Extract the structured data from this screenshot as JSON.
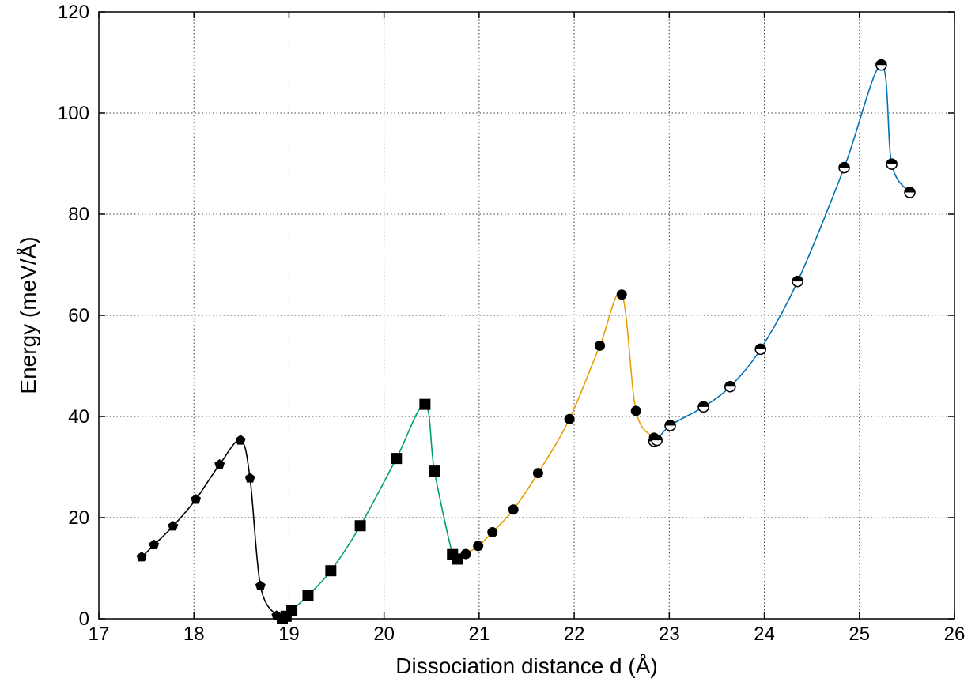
{
  "chart_data": {
    "type": "scatter",
    "title": "",
    "xlabel": "Dissociation distance d (Å)",
    "ylabel": "Energy (meV/Å)",
    "xlim": [
      17,
      26
    ],
    "ylim": [
      0,
      120
    ],
    "xticks": [
      17,
      18,
      19,
      20,
      21,
      22,
      23,
      24,
      25,
      26
    ],
    "yticks": [
      0,
      20,
      40,
      60,
      80,
      100,
      120
    ],
    "grid": true,
    "legend": "none",
    "series": [
      {
        "marker": "pentagon",
        "color": "#000000",
        "points": [
          [
            17.45,
            12.2
          ],
          [
            17.58,
            14.6
          ],
          [
            17.78,
            18.3
          ],
          [
            18.02,
            23.6
          ],
          [
            18.27,
            30.5
          ],
          [
            18.49,
            35.3
          ],
          [
            18.59,
            27.8
          ],
          [
            18.7,
            6.5
          ],
          [
            18.87,
            0.6
          ],
          [
            18.92,
            0.2
          ]
        ]
      },
      {
        "marker": "square",
        "color": "#009e73",
        "points": [
          [
            18.93,
            0.0
          ],
          [
            18.97,
            0.5
          ],
          [
            19.03,
            1.7
          ],
          [
            19.2,
            4.6
          ],
          [
            19.44,
            9.5
          ],
          [
            19.75,
            18.4
          ],
          [
            20.13,
            31.7
          ],
          [
            20.43,
            42.4
          ],
          [
            20.53,
            29.2
          ],
          [
            20.72,
            12.7
          ],
          [
            20.77,
            11.8
          ]
        ]
      },
      {
        "marker": "circle",
        "color": "#e69f00",
        "points": [
          [
            20.86,
            12.8
          ],
          [
            20.99,
            14.4
          ],
          [
            21.14,
            17.1
          ],
          [
            21.36,
            21.6
          ],
          [
            21.62,
            28.8
          ],
          [
            21.95,
            39.5
          ],
          [
            22.27,
            54.0
          ],
          [
            22.5,
            64.1
          ],
          [
            22.65,
            41.1
          ],
          [
            22.84,
            35.8
          ],
          [
            22.86,
            35.3
          ]
        ]
      },
      {
        "marker": "half-circle",
        "color": "#0072b2",
        "points": [
          [
            22.84,
            35.1
          ],
          [
            22.87,
            35.3
          ],
          [
            23.01,
            38.2
          ],
          [
            23.36,
            41.9
          ],
          [
            23.64,
            45.9
          ],
          [
            23.96,
            53.3
          ],
          [
            24.35,
            66.7
          ],
          [
            24.84,
            89.2
          ],
          [
            25.23,
            109.5
          ],
          [
            25.34,
            89.9
          ],
          [
            25.53,
            84.3
          ]
        ]
      }
    ]
  }
}
